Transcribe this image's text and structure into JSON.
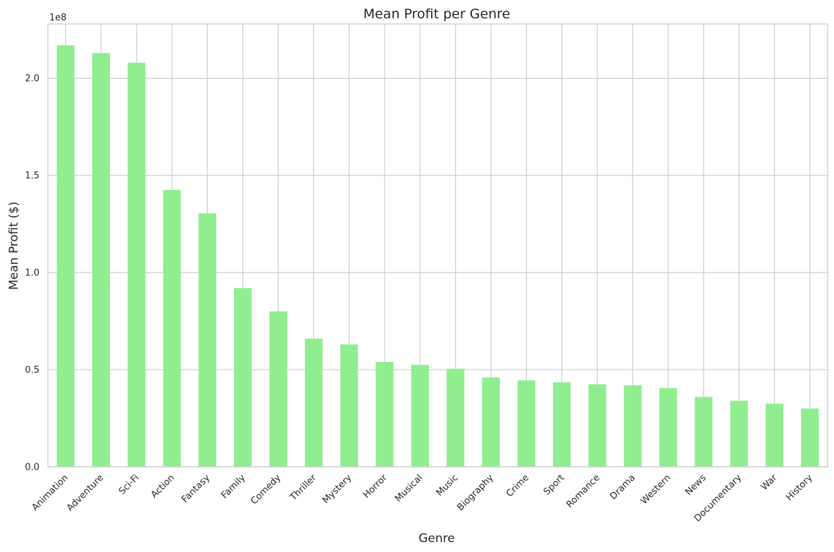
{
  "chart_data": {
    "type": "bar",
    "title": "Mean Profit per Genre",
    "xlabel": "Genre",
    "ylabel": "Mean Profit ($)",
    "y_offset_label": "1e8",
    "y_scale": 100000000,
    "ylim": [
      0,
      228000000
    ],
    "yticks": [
      0,
      50000000,
      100000000,
      150000000,
      200000000
    ],
    "ytick_labels": [
      "0.0",
      "0.5",
      "1.0",
      "1.5",
      "2.0"
    ],
    "grid": true,
    "bar_color": "#90ee90",
    "categories": [
      "Animation",
      "Adventure",
      "Sci-Fi",
      "Action",
      "Fantasy",
      "Family",
      "Comedy",
      "Thriller",
      "Mystery",
      "Horror",
      "Musical",
      "Music",
      "Biography",
      "Crime",
      "Sport",
      "Romance",
      "Drama",
      "Western",
      "News",
      "Documentary",
      "War",
      "History"
    ],
    "values": [
      217000000,
      213000000,
      208000000,
      142500000,
      130500000,
      92000000,
      80000000,
      66000000,
      63000000,
      54000000,
      52500000,
      50500000,
      46000000,
      44500000,
      43500000,
      42500000,
      42000000,
      40500000,
      36000000,
      34000000,
      32500000,
      30000000
    ]
  }
}
